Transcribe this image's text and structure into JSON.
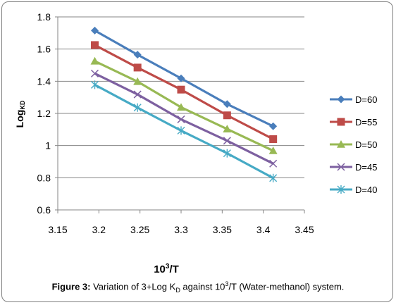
{
  "chart_data": {
    "type": "line",
    "title": "",
    "ylabel": "Log",
    "ylabel_sub": "KD",
    "xlabel": "10",
    "xlabel_sup": "3",
    "xlabel_tail": "/T",
    "xlim": [
      3.15,
      3.45
    ],
    "ylim": [
      0.6,
      1.8
    ],
    "x_ticks": [
      "3.15",
      "3.2",
      "3.25",
      "3.3",
      "3.35",
      "3.4",
      "3.45"
    ],
    "y_ticks": [
      "0.6",
      "0.8",
      "1",
      "1.2",
      "1.4",
      "1.6",
      "1.8"
    ],
    "grid": "horizontal",
    "legend_position": "right",
    "x": [
      3.195,
      3.247,
      3.3,
      3.356,
      3.412
    ],
    "series": [
      {
        "name": "D=60",
        "values": [
          1.715,
          1.565,
          1.418,
          1.258,
          1.12
        ],
        "color": "#4a7ebb",
        "marker": "diamond"
      },
      {
        "name": "D=55",
        "values": [
          1.625,
          1.485,
          1.348,
          1.188,
          1.04
        ],
        "color": "#be4b48",
        "marker": "square"
      },
      {
        "name": "D=50",
        "values": [
          1.525,
          1.398,
          1.238,
          1.103,
          0.968
        ],
        "color": "#98b954",
        "marker": "triangle"
      },
      {
        "name": "D=45",
        "values": [
          1.448,
          1.318,
          1.163,
          1.03,
          0.888
        ],
        "color": "#7d60a0",
        "marker": "x"
      },
      {
        "name": "D=40",
        "values": [
          1.378,
          1.236,
          1.093,
          0.952,
          0.798
        ],
        "color": "#46aac5",
        "marker": "star"
      }
    ]
  },
  "caption": {
    "label": "Figure 3:",
    "text_a": " Variation of 3+Log K",
    "text_sub": "D",
    "text_b": " against 10",
    "text_sup": "3",
    "text_c": "/T (Water-methanol) system."
  }
}
